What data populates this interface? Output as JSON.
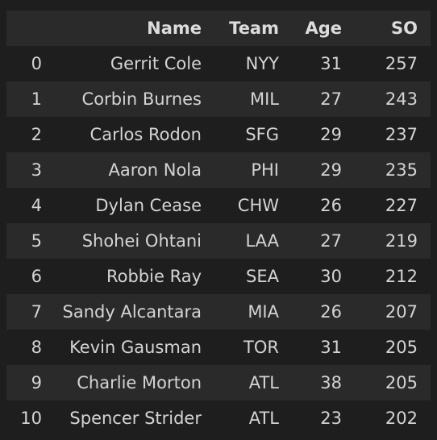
{
  "table": {
    "columns": [
      "",
      "Name",
      "Team",
      "Age",
      "SO"
    ],
    "rows": [
      {
        "index": "0",
        "name": "Gerrit Cole",
        "team": "NYY",
        "age": "31",
        "so": "257"
      },
      {
        "index": "1",
        "name": "Corbin Burnes",
        "team": "MIL",
        "age": "27",
        "so": "243"
      },
      {
        "index": "2",
        "name": "Carlos Rodon",
        "team": "SFG",
        "age": "29",
        "so": "237"
      },
      {
        "index": "3",
        "name": "Aaron Nola",
        "team": "PHI",
        "age": "29",
        "so": "235"
      },
      {
        "index": "4",
        "name": "Dylan Cease",
        "team": "CHW",
        "age": "26",
        "so": "227"
      },
      {
        "index": "5",
        "name": "Shohei Ohtani",
        "team": "LAA",
        "age": "27",
        "so": "219"
      },
      {
        "index": "6",
        "name": "Robbie Ray",
        "team": "SEA",
        "age": "30",
        "so": "212"
      },
      {
        "index": "7",
        "name": "Sandy Alcantara",
        "team": "MIA",
        "age": "26",
        "so": "207"
      },
      {
        "index": "8",
        "name": "Kevin Gausman",
        "team": "TOR",
        "age": "31",
        "so": "205"
      },
      {
        "index": "9",
        "name": "Charlie Morton",
        "team": "ATL",
        "age": "38",
        "so": "205"
      },
      {
        "index": "10",
        "name": "Spencer Strider",
        "team": "ATL",
        "age": "23",
        "so": "202"
      }
    ]
  }
}
